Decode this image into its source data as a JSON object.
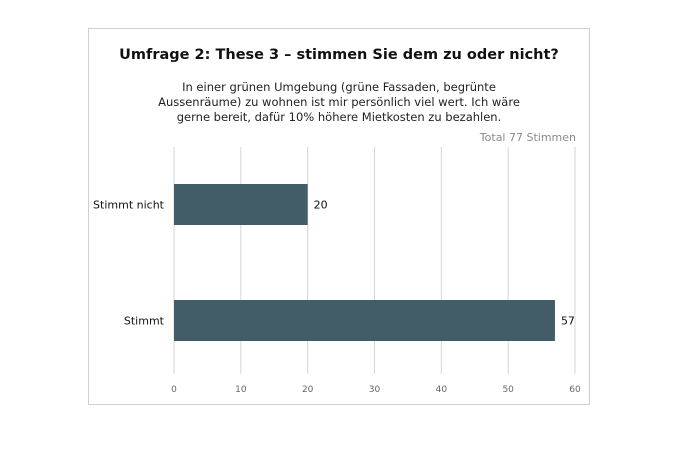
{
  "chart_data": {
    "type": "bar",
    "orientation": "horizontal",
    "title": "Umfrage 2: These 3 – stimmen Sie dem zu oder nicht?",
    "subtitle": "In einer grünen Umgebung (grüne Fassaden, begrünte Aussenräume) zu wohnen ist mir persönlich viel wert. Ich wäre gerne bereit, dafür 10% höhere Mietkosten zu bezahlen.",
    "total_label": "Total 77 Stimmen",
    "categories": [
      "Stimmt nicht",
      "Stimmt"
    ],
    "values": [
      20,
      57
    ],
    "xlim": [
      0,
      60
    ],
    "xticks": [
      0,
      10,
      20,
      30,
      40,
      50,
      60
    ],
    "grid": true,
    "bar_color": "#425c68",
    "grid_color": "#d6d6d6"
  }
}
